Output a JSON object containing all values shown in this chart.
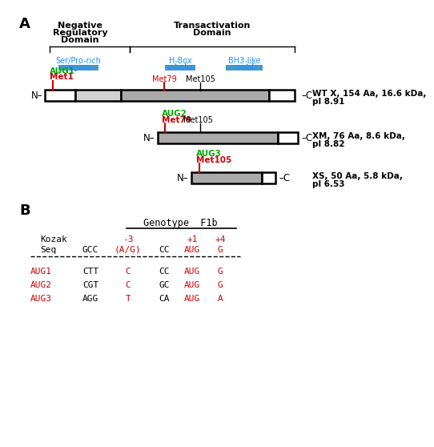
{
  "green_color": "#00AA00",
  "red_color": "#CC0000",
  "cyan_color": "#1E90FF",
  "black_color": "#000000",
  "gray_fill": "#AAAAAA",
  "light_gray_fill": "#D3D3D3",
  "white_fill": "#FFFFFF",
  "wt_label": "WT X, 154 Aa, 16.6 kDa,\npl 8.91",
  "xm_label": "XM, 76 Aa, 8.6 kDa,\npl 8.82",
  "xs_label": "XS, 50 Aa, 5.8 kDa,\npl 6.53",
  "kozak_rows": [
    [
      "AUG1",
      "CTT",
      "C",
      "CC",
      "AUG",
      "G"
    ],
    [
      "AUG2",
      "CGT",
      "C",
      "GC",
      "AUG",
      "G"
    ],
    [
      "AUG3",
      "AGG",
      "T",
      "CA",
      "AUG",
      "A"
    ]
  ]
}
